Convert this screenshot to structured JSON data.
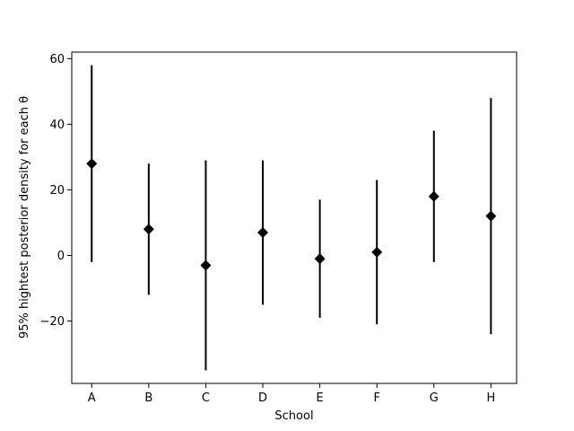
{
  "chart_data": {
    "type": "scatter",
    "title": "",
    "xlabel": "School",
    "ylabel": "95% hightest posterior density for each θ",
    "categories": [
      "A",
      "B",
      "C",
      "D",
      "E",
      "F",
      "G",
      "H"
    ],
    "series": [
      {
        "values": [
          28,
          8,
          -3,
          7,
          -1,
          1,
          18,
          12
        ],
        "intervals": [
          [
            -2,
            58
          ],
          [
            -12,
            28
          ],
          [
            -35,
            29
          ],
          [
            -15,
            29
          ],
          [
            -19,
            17
          ],
          [
            -21,
            23
          ],
          [
            -2,
            38
          ],
          [
            -24,
            48
          ]
        ],
        "marker": "diamond",
        "color": "#000000"
      }
    ],
    "ylim": [
      -39,
      62
    ],
    "yticks": [
      -20,
      0,
      20,
      40,
      60
    ],
    "ytick_labels": [
      "−20",
      "0",
      "20",
      "40",
      "60"
    ],
    "grid": false,
    "legend": "none"
  }
}
